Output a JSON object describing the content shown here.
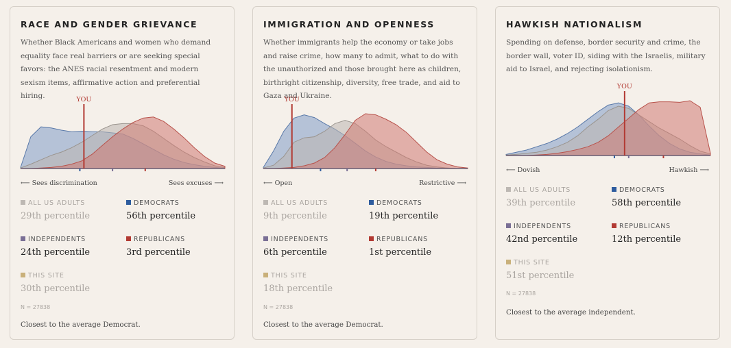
{
  "colors": {
    "all": "#bdb8b3",
    "democrats": "#2e5c9e",
    "independents": "#7a6f95",
    "republicans": "#b23a33",
    "site": "#c9b07a",
    "dem_fill": "#7f9cc7",
    "rep_fill": "#cf7a73",
    "all_fill": "#bcb6b0",
    "you": "#b23a33"
  },
  "cards": [
    {
      "title": "RACE AND GENDER GRIEVANCE",
      "description": "Whether Black Americans and women who demand equality face real barriers or are seeking special favors: the ANES racial resentment and modern sexism items, affirmative action and preferential hiring.",
      "axis_left": "⟵ Sees discrimination",
      "axis_right": "Sees excuses ⟶",
      "you_label": "YOU",
      "groups": [
        {
          "key": "all",
          "label": "ALL US ADULTS",
          "value": "29th percentile",
          "muted": true
        },
        {
          "key": "democrats",
          "label": "DEMOCRATS",
          "value": "56th percentile",
          "muted": false
        },
        {
          "key": "independents",
          "label": "INDEPENDENTS",
          "value": "24th percentile",
          "muted": false
        },
        {
          "key": "republicans",
          "label": "REPUBLICANS",
          "value": "3rd percentile",
          "muted": false
        },
        {
          "key": "site",
          "label": "THIS SITE",
          "value": "30th percentile",
          "muted": true
        }
      ],
      "n": "N = 27838",
      "closest": "Closest to the average Democrat."
    },
    {
      "title": "IMMIGRATION AND OPENNESS",
      "description": "Whether immigrants help the economy or take jobs and raise crime, how many to admit, what to do with the unauthorized and those brought here as children, birthright citizenship, diversity, free trade, and aid to Gaza and Ukraine.",
      "axis_left": "⟵ Open",
      "axis_right": "Restrictive ⟶",
      "you_label": "YOU",
      "groups": [
        {
          "key": "all",
          "label": "ALL US ADULTS",
          "value": "9th percentile",
          "muted": true
        },
        {
          "key": "democrats",
          "label": "DEMOCRATS",
          "value": "19th percentile",
          "muted": false
        },
        {
          "key": "independents",
          "label": "INDEPENDENTS",
          "value": "6th percentile",
          "muted": false
        },
        {
          "key": "republicans",
          "label": "REPUBLICANS",
          "value": "1st percentile",
          "muted": false
        },
        {
          "key": "site",
          "label": "THIS SITE",
          "value": "18th percentile",
          "muted": true
        }
      ],
      "n": "N = 27838",
      "closest": "Closest to the average Democrat."
    },
    {
      "title": "HAWKISH NATIONALISM",
      "description": "Spending on defense, border security and crime, the border wall, voter ID, siding with the Israelis, military aid to Israel, and rejecting isolationism.",
      "axis_left": "⟵ Dovish",
      "axis_right": "Hawkish ⟶",
      "you_label": "YOU",
      "groups": [
        {
          "key": "all",
          "label": "ALL US ADULTS",
          "value": "39th percentile",
          "muted": true
        },
        {
          "key": "democrats",
          "label": "DEMOCRATS",
          "value": "58th percentile",
          "muted": false
        },
        {
          "key": "independents",
          "label": "INDEPENDENTS",
          "value": "42nd percentile",
          "muted": false
        },
        {
          "key": "republicans",
          "label": "REPUBLICANS",
          "value": "12th percentile",
          "muted": false
        },
        {
          "key": "site",
          "label": "THIS SITE",
          "value": "51st percentile",
          "muted": true
        }
      ],
      "n": "N = 27838",
      "closest": "Closest to the average independent."
    }
  ],
  "chart_data": [
    {
      "type": "area",
      "xlim": [
        0,
        1
      ],
      "you": 0.31,
      "group_means": {
        "democrats": 0.29,
        "independents": 0.45,
        "republicans": 0.61
      },
      "series": [
        {
          "key": "democrats",
          "y": [
            0.02,
            0.58,
            0.76,
            0.74,
            0.7,
            0.67,
            0.68,
            0.67,
            0.67,
            0.65,
            0.63,
            0.55,
            0.45,
            0.35,
            0.25,
            0.17,
            0.11,
            0.07,
            0.04,
            0.02,
            0.01
          ]
        },
        {
          "key": "all",
          "y": [
            0.01,
            0.08,
            0.16,
            0.24,
            0.3,
            0.38,
            0.48,
            0.6,
            0.72,
            0.8,
            0.82,
            0.82,
            0.78,
            0.68,
            0.55,
            0.42,
            0.3,
            0.2,
            0.12,
            0.05,
            0.02
          ]
        },
        {
          "key": "republicans",
          "y": [
            0.0,
            0.0,
            0.01,
            0.02,
            0.04,
            0.08,
            0.14,
            0.26,
            0.42,
            0.58,
            0.72,
            0.84,
            0.92,
            0.94,
            0.86,
            0.72,
            0.56,
            0.38,
            0.22,
            0.1,
            0.04
          ]
        }
      ]
    },
    {
      "type": "area",
      "xlim": [
        0,
        1
      ],
      "you": 0.14,
      "group_means": {
        "democrats": 0.28,
        "independents": 0.41,
        "republicans": 0.55
      },
      "series": [
        {
          "key": "democrats",
          "y": [
            0.02,
            0.32,
            0.68,
            0.92,
            0.98,
            0.93,
            0.82,
            0.72,
            0.6,
            0.46,
            0.32,
            0.21,
            0.13,
            0.08,
            0.05,
            0.03,
            0.02,
            0.01,
            0.01,
            0.0,
            0.0
          ]
        },
        {
          "key": "all",
          "y": [
            0.01,
            0.06,
            0.22,
            0.48,
            0.56,
            0.58,
            0.68,
            0.82,
            0.88,
            0.82,
            0.68,
            0.52,
            0.4,
            0.3,
            0.2,
            0.12,
            0.06,
            0.03,
            0.01,
            0.0,
            0.0
          ]
        },
        {
          "key": "republicans",
          "y": [
            0.0,
            0.0,
            0.01,
            0.02,
            0.05,
            0.1,
            0.2,
            0.38,
            0.62,
            0.88,
            1.0,
            0.98,
            0.9,
            0.8,
            0.66,
            0.48,
            0.3,
            0.16,
            0.08,
            0.03,
            0.01
          ]
        }
      ]
    },
    {
      "type": "area",
      "xlim": [
        0,
        1
      ],
      "you": 0.58,
      "group_means": {
        "democrats": 0.53,
        "independents": 0.6,
        "republicans": 0.77
      },
      "series": [
        {
          "key": "democrats",
          "y": [
            0.02,
            0.06,
            0.1,
            0.16,
            0.22,
            0.3,
            0.4,
            0.52,
            0.66,
            0.8,
            0.92,
            0.96,
            0.9,
            0.74,
            0.54,
            0.36,
            0.22,
            0.12,
            0.06,
            0.03,
            0.01
          ]
        },
        {
          "key": "all",
          "y": [
            0.01,
            0.02,
            0.04,
            0.06,
            0.1,
            0.16,
            0.24,
            0.36,
            0.52,
            0.66,
            0.82,
            0.9,
            0.86,
            0.74,
            0.62,
            0.5,
            0.4,
            0.3,
            0.18,
            0.08,
            0.03
          ]
        },
        {
          "key": "republicans",
          "y": [
            0.0,
            0.0,
            0.0,
            0.01,
            0.02,
            0.04,
            0.07,
            0.11,
            0.16,
            0.24,
            0.36,
            0.52,
            0.68,
            0.84,
            0.96,
            0.98,
            0.98,
            0.97,
            1.0,
            0.88,
            0.04
          ]
        }
      ]
    }
  ]
}
